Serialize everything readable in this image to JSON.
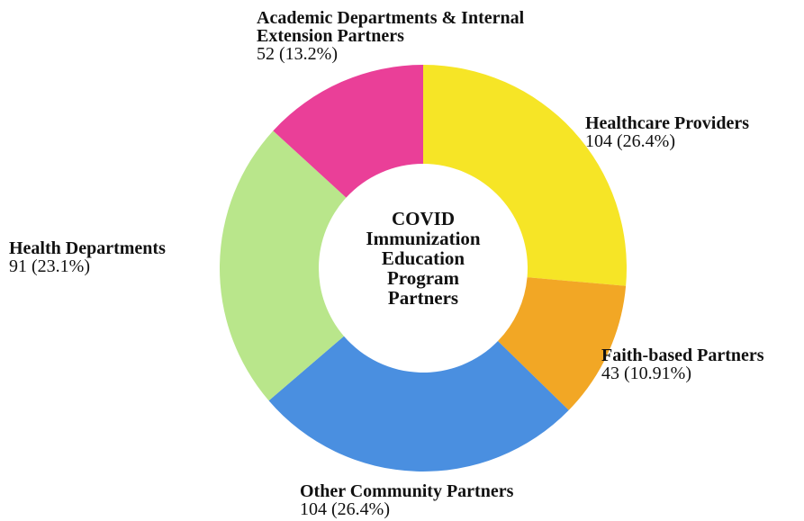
{
  "chart_data": {
    "type": "donut",
    "title": "COVID Immunization Education Program Partners",
    "categories": [
      "Healthcare Providers",
      "Faith-based Partners",
      "Other Community Partners",
      "Health Departments",
      "Academic Departments & Internal Extension Partners"
    ],
    "values": [
      104,
      43,
      104,
      91,
      52
    ],
    "value_labels": [
      "104 (26.4%)",
      "43 (10.91%)",
      "104 (26.4%)",
      "91 (23.1%)",
      "52 (13.2%)"
    ],
    "colors": [
      "#f6e526",
      "#f2a725",
      "#4a8fe0",
      "#b9e68b",
      "#ea3f98"
    ]
  }
}
